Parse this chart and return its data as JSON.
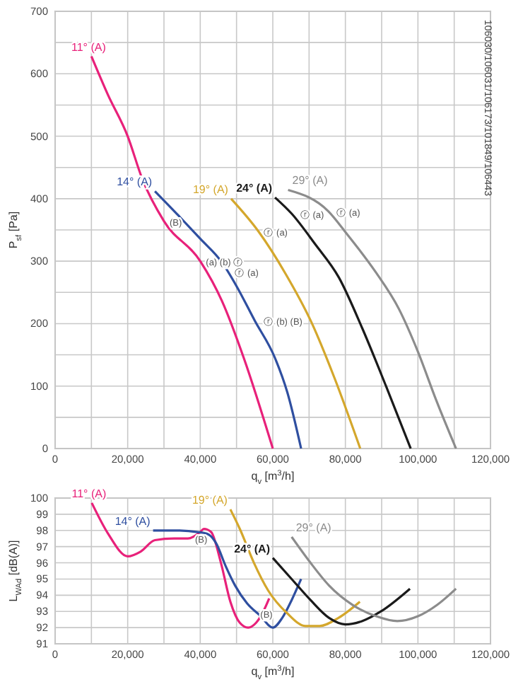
{
  "chart_data": [
    {
      "type": "line",
      "xlabel": "q$_{v}$ [m$^{3}$/h]",
      "ylabel": "P$_{sf}$ [Pa]",
      "xlim": [
        0,
        120000
      ],
      "ylim": [
        0,
        700
      ],
      "xticks": [
        0,
        {
          "value": 10000,
          "label": null
        },
        {
          "value": 20000,
          "label": "20,000"
        },
        {
          "value": 30000,
          "label": null
        },
        {
          "value": 40000,
          "label": "40,000"
        },
        {
          "value": 50000,
          "label": null
        },
        {
          "value": 60000,
          "label": "60,000"
        },
        {
          "value": 70000,
          "label": null
        },
        {
          "value": 80000,
          "label": "80,000"
        },
        {
          "value": 90000,
          "label": null
        },
        {
          "value": 100000,
          "label": "100,000"
        },
        {
          "value": 110000,
          "label": null
        },
        {
          "value": 120000,
          "label": "120,000"
        }
      ],
      "yticks": [
        0,
        {
          "value": 50,
          "label": null
        },
        100,
        {
          "value": 150,
          "label": null
        },
        200,
        {
          "value": 250,
          "label": null
        },
        300,
        {
          "value": 350,
          "label": null
        },
        400,
        {
          "value": 450,
          "label": null
        },
        500,
        {
          "value": 550,
          "label": null
        },
        600,
        {
          "value": 650,
          "label": null
        },
        700
      ],
      "grid": true,
      "marker": "none",
      "line_style": "solid",
      "series": [
        {
          "name": "11° (A)",
          "color": "#e8217a",
          "x": [
            10000,
            14500,
            20000,
            24000,
            30000,
            40000,
            46000,
            52000,
            60000
          ],
          "values": [
            628,
            567,
            500,
            432,
            364,
            300,
            236,
            145,
            0
          ]
        },
        {
          "name": "14° (A)",
          "color": "#2f4fa0",
          "x": [
            27500,
            34000,
            40000,
            46000,
            50000,
            55000,
            60600,
            64000,
            67800
          ],
          "values": [
            412,
            373,
            336,
            298,
            260,
            205,
            145,
            90,
            0
          ]
        },
        {
          "name": "19° (A)",
          "color": "#d4a72c",
          "x": [
            48500,
            56000,
            63600,
            70500,
            77000,
            84100
          ],
          "values": [
            400,
            348,
            279,
            204,
            113,
            0
          ]
        },
        {
          "name": "24° (A)",
          "color": "#1a1a1a",
          "x": [
            60600,
            65200,
            71700,
            78200,
            84700,
            91200,
            98000
          ],
          "values": [
            402,
            376,
            327,
            274,
            192,
            100,
            0
          ]
        },
        {
          "name": "29° (A)",
          "color": "#8c8c8c",
          "x": [
            64200,
            75300,
            80500,
            88300,
            94800,
            100000,
            105000,
            110500
          ],
          "values": [
            414,
            380,
            343,
            283,
            223,
            155,
            78,
            0
          ]
        }
      ],
      "annotations": [
        {
          "text": "(B)",
          "x": 30000,
          "y": 364
        },
        {
          "text": "(a) (b) ⓡ",
          "x": 40000,
          "y": 300
        },
        {
          "text": "ⓡ (a)",
          "x": 48000,
          "y": 283
        },
        {
          "text": "ⓡ (b) (B)",
          "x": 56000,
          "y": 205
        },
        {
          "text": "ⓡ (a)",
          "x": 56000,
          "y": 348
        },
        {
          "text": "ⓡ (a)",
          "x": 66000,
          "y": 376
        },
        {
          "text": "ⓡ (a)",
          "x": 76000,
          "y": 380
        },
        "106030/106031/106173/101849/106443"
      ]
    },
    {
      "type": "line",
      "xlabel": "q$_{v}$ [m$^{3}$/h]",
      "ylabel": "L$_{WAd}$ [dB(A)]",
      "xlim": [
        0,
        120000
      ],
      "ylim": [
        91,
        100
      ],
      "xticks": [
        0,
        {
          "value": 10000,
          "label": null
        },
        {
          "value": 20000,
          "label": "20,000"
        },
        {
          "value": 30000,
          "label": null
        },
        {
          "value": 40000,
          "label": "40,000"
        },
        {
          "value": 50000,
          "label": null
        },
        {
          "value": 60000,
          "label": "60,000"
        },
        {
          "value": 70000,
          "label": null
        },
        {
          "value": 80000,
          "label": "80,000"
        },
        {
          "value": 90000,
          "label": null
        },
        {
          "value": 100000,
          "label": "100,000"
        },
        {
          "value": 110000,
          "label": null
        },
        {
          "value": 120000,
          "label": "120,000"
        }
      ],
      "yticks": [
        91,
        92,
        93,
        94,
        95,
        96,
        97,
        98,
        99,
        100
      ],
      "grid": true,
      "marker": "none",
      "line_style": "solid",
      "series": [
        {
          "name": "11° (A)",
          "color": "#e8217a",
          "x": [
            10100,
            14600,
            20000,
            23600,
            27500,
            32800,
            36600,
            40000,
            41000,
            43000,
            45700,
            48300,
            50900,
            53200,
            55400,
            57400,
            59000
          ],
          "values": [
            99.7,
            97.8,
            96.4,
            96.7,
            97.4,
            97.5,
            97.5,
            97.9,
            98.1,
            97.9,
            96.0,
            93.6,
            92.3,
            92.0,
            92.3,
            93.0,
            93.8
          ]
        },
        {
          "name": "14° (A)",
          "color": "#2f4fa0",
          "x": [
            27000,
            32800,
            39300,
            41800,
            44400,
            47000,
            49600,
            52900,
            56700,
            60000,
            62600,
            65200,
            67800
          ],
          "values": [
            98.0,
            98.0,
            97.9,
            97.8,
            97.2,
            95.8,
            94.6,
            93.5,
            92.7,
            92.0,
            92.6,
            93.7,
            95.0
          ]
        },
        {
          "name": "19° (A)",
          "color": "#d4a72c",
          "x": [
            48300,
            50900,
            54800,
            58700,
            63900,
            69000,
            72900,
            78100,
            84000
          ],
          "values": [
            99.3,
            98.1,
            96.0,
            94.3,
            92.9,
            92.1,
            92.1,
            92.6,
            93.6
          ]
        },
        {
          "name": "24° (A)",
          "color": "#1a1a1a",
          "x": [
            60000,
            65200,
            70400,
            75500,
            80000,
            84600,
            89800,
            97800
          ],
          "values": [
            96.3,
            95.0,
            93.7,
            92.6,
            92.2,
            92.4,
            93.0,
            94.4
          ]
        },
        {
          "name": "29° (A)",
          "color": "#8c8c8c",
          "x": [
            65200,
            70400,
            75500,
            82000,
            88500,
            94300,
            100000,
            105300,
            110500
          ],
          "values": [
            97.6,
            96.0,
            94.6,
            93.4,
            92.7,
            92.4,
            92.7,
            93.4,
            94.4
          ]
        }
      ],
      "annotations": [
        {
          "text": "(B)",
          "x": 37000,
          "y": 97.5
        },
        {
          "text": "(B)",
          "x": 55000,
          "y": 92.9
        }
      ]
    }
  ]
}
